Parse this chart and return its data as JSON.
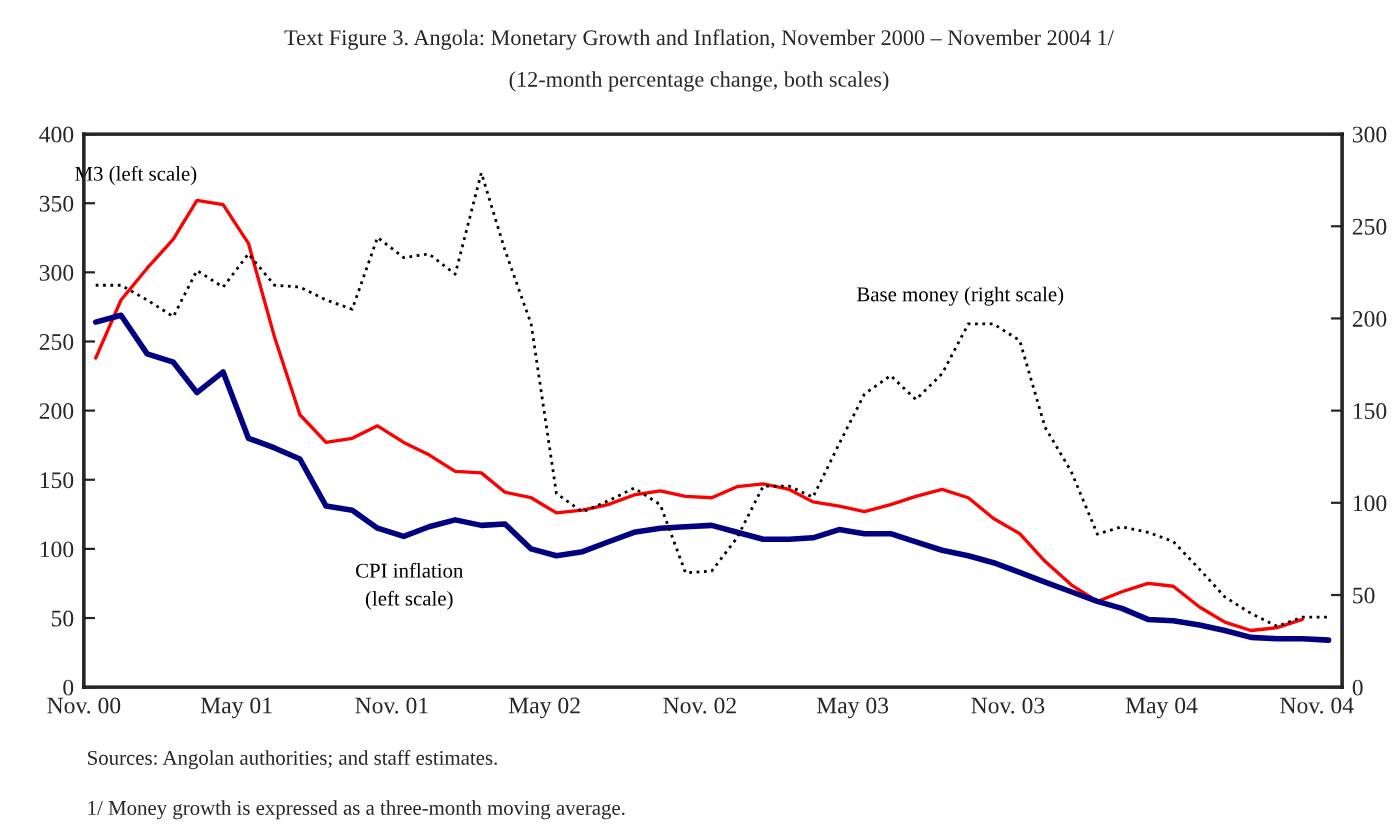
{
  "chart_data": {
    "type": "line",
    "title": "Text Figure 3. Angola: Monetary Growth and Inflation, November 2000 – November 2004 1/",
    "subtitle": "(12-month percentage change, both scales)",
    "x": [
      "2000-11-15",
      "2000-12-15",
      "2001-01-15",
      "2001-02-15",
      "2001-03-15",
      "2001-04-15",
      "2001-05-15",
      "2001-06-15",
      "2001-07-15",
      "2001-08-15",
      "2001-09-15",
      "2001-10-15",
      "2001-11-15",
      "2001-12-15",
      "2002-01-15",
      "2002-02-15",
      "2002-03-15",
      "2002-04-15",
      "2002-05-15",
      "2002-06-15",
      "2002-07-15",
      "2002-08-15",
      "2002-09-15",
      "2002-10-15",
      "2002-11-15",
      "2002-12-15",
      "2003-01-15",
      "2003-02-15",
      "2003-03-15",
      "2003-04-15",
      "2003-05-15",
      "2003-06-15",
      "2003-07-15",
      "2003-08-15",
      "2003-09-15",
      "2003-10-15",
      "2003-11-15",
      "2003-12-15",
      "2004-01-15",
      "2004-02-15",
      "2004-03-15",
      "2004-04-15",
      "2004-05-15",
      "2004-06-15",
      "2004-07-15",
      "2004-08-15",
      "2004-09-15",
      "2004-10-15",
      "2004-11-15"
    ],
    "series": [
      {
        "name": "M3 (left scale)",
        "color": "#ff0000",
        "line_style": "solid",
        "values": [
          238,
          280,
          303,
          324,
          352,
          349,
          321,
          253,
          197,
          177,
          180,
          189,
          177,
          168,
          156,
          155,
          141,
          137,
          126,
          128,
          132,
          139,
          142,
          138,
          137,
          145,
          147,
          143,
          134,
          131,
          127,
          132,
          138,
          143,
          137,
          122,
          111,
          91,
          74,
          62,
          69,
          75,
          73,
          58,
          47,
          41,
          43,
          49,
          null
        ]
      },
      {
        "name": "CPI inflation\n(left scale)",
        "color": "#000080",
        "line_style": "solid",
        "values": [
          264,
          269,
          241,
          235,
          213,
          228,
          180,
          173,
          165,
          131,
          128,
          115,
          109,
          116,
          121,
          117,
          118,
          100,
          95,
          98,
          105,
          112,
          115,
          116,
          117,
          112,
          107,
          107,
          108,
          114,
          111,
          111,
          105,
          99,
          95,
          90,
          83,
          76,
          69,
          62,
          57,
          49,
          48,
          45,
          41,
          36,
          35,
          35,
          34
        ]
      },
      {
        "name": "Base money (right scale)",
        "color": "#000000",
        "line_style": "dotted",
        "axis": "y2",
        "values": [
          218,
          218,
          210,
          201,
          226,
          217,
          235,
          218,
          217,
          210,
          205,
          244,
          233,
          235,
          224,
          279,
          237,
          197,
          105,
          95,
          101,
          108,
          99,
          62,
          63,
          81,
          109,
          109,
          103,
          132,
          159,
          169,
          156,
          170,
          197,
          197,
          188,
          141,
          117,
          83,
          87,
          84,
          79,
          64,
          49,
          40,
          33,
          38,
          38
        ]
      }
    ],
    "xlim": [
      "2000-11-01",
      "2004-12-01"
    ],
    "xticks": [
      {
        "value": "2000-11-01",
        "label": "Nov. 00"
      },
      {
        "value": "2001-05-01",
        "label": "May 01"
      },
      {
        "value": "2001-11-01",
        "label": "Nov. 01"
      },
      {
        "value": "2002-05-01",
        "label": "May 02"
      },
      {
        "value": "2002-11-01",
        "label": "Nov. 02"
      },
      {
        "value": "2003-05-01",
        "label": "May 03"
      },
      {
        "value": "2003-11-01",
        "label": "Nov. 03"
      },
      {
        "value": "2004-05-01",
        "label": "May 04"
      },
      {
        "value": "2004-11-01",
        "label": "Nov. 04"
      }
    ],
    "ylim": [
      0,
      400
    ],
    "yticks": [
      0,
      50,
      100,
      150,
      200,
      250,
      300,
      350,
      400
    ],
    "y2lim": [
      0,
      300
    ],
    "y2ticks": [
      0,
      50,
      100,
      150,
      200,
      250,
      300
    ],
    "grid": false,
    "legend": false,
    "annotations": [
      "Sources: Angolan authorities; and staff estimates.",
      "1/ Money growth is expressed as a three-month moving average."
    ]
  }
}
